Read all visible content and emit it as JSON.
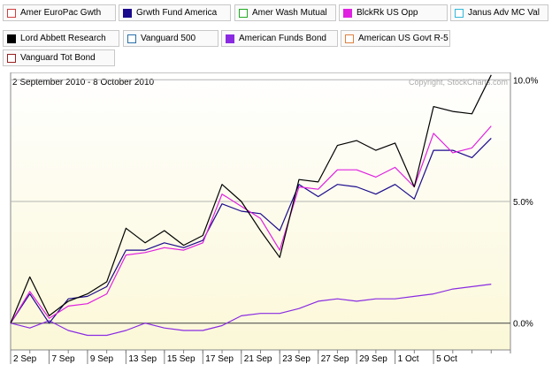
{
  "chart_data": {
    "type": "line",
    "date_range": "2 September 2010 - 8 October 2010",
    "copyright": "Copyright, StockCharts.com",
    "x_tick_labels": [
      "2 Sep",
      "7 Sep",
      "9 Sep",
      "13 Sep",
      "15 Sep",
      "17 Sep",
      "21 Sep",
      "23 Sep",
      "27 Sep",
      "29 Sep",
      "1 Oct",
      "5 Oct"
    ],
    "x_tick_index": [
      0,
      2,
      4,
      6,
      8,
      10,
      12,
      14,
      16,
      18,
      20,
      22
    ],
    "y_ticks": [
      0,
      5,
      10
    ],
    "y_tick_labels": [
      "0.0%",
      "5.0%",
      "10.0%"
    ],
    "ylim": [
      -1.1,
      10.3
    ],
    "y_unit": "%",
    "grid": true,
    "legend_position": "top",
    "legend": [
      {
        "name": "Amer EuroPac Gwth",
        "color": "#d04040",
        "filled": false
      },
      {
        "name": "Grwth Fund America",
        "color": "#1a0a8c",
        "filled": true
      },
      {
        "name": "Amer Wash Mutual",
        "color": "#22aa22",
        "filled": false
      },
      {
        "name": "BlckRk US Opp",
        "color": "#e020e0",
        "filled": true
      },
      {
        "name": "Janus Adv MC Val",
        "color": "#30b8d8",
        "filled": false
      },
      {
        "name": "Lord Abbett Research",
        "color": "#000000",
        "filled": true
      },
      {
        "name": "Vanguard 500",
        "color": "#2a70a8",
        "filled": false
      },
      {
        "name": "American Funds Bond",
        "color": "#8a2be2",
        "filled": true
      },
      {
        "name": "American US Govt R-5",
        "color": "#e08040",
        "filled": false
      },
      {
        "name": "Vanguard Tot Bond",
        "color": "#9a2020",
        "filled": false
      }
    ],
    "series": [
      {
        "name": "Lord Abbett Research",
        "color": "#000000",
        "values": [
          0.0,
          1.9,
          0.3,
          0.9,
          1.2,
          1.7,
          3.9,
          3.3,
          3.8,
          3.2,
          3.6,
          5.7,
          5.0,
          3.8,
          2.7,
          5.9,
          5.8,
          7.3,
          7.5,
          7.1,
          7.4,
          5.6,
          8.9,
          8.7,
          8.6,
          10.2
        ]
      },
      {
        "name": "BlckRk US Opp",
        "color": "#e020e0",
        "values": [
          0.0,
          1.3,
          0.2,
          0.7,
          0.8,
          1.2,
          2.8,
          2.9,
          3.1,
          3.0,
          3.3,
          5.3,
          4.8,
          4.3,
          3.0,
          5.6,
          5.5,
          6.3,
          6.3,
          6.0,
          6.4,
          5.6,
          7.8,
          7.0,
          7.2,
          8.1
        ]
      },
      {
        "name": "Grwth Fund America",
        "color": "#1a0a8c",
        "values": [
          0.0,
          1.2,
          0.0,
          1.0,
          1.1,
          1.5,
          3.0,
          3.0,
          3.3,
          3.1,
          3.4,
          4.9,
          4.6,
          4.5,
          3.8,
          5.7,
          5.2,
          5.7,
          5.6,
          5.3,
          5.7,
          5.1,
          7.1,
          7.1,
          6.8,
          7.6
        ]
      },
      {
        "name": "American Funds Bond",
        "color": "#8a2be2",
        "values": [
          0.0,
          -0.2,
          0.1,
          -0.3,
          -0.5,
          -0.5,
          -0.3,
          0.0,
          -0.2,
          -0.3,
          -0.3,
          -0.1,
          0.3,
          0.4,
          0.4,
          0.6,
          0.9,
          1.0,
          0.9,
          1.0,
          1.0,
          1.1,
          1.2,
          1.4,
          1.5,
          1.6
        ]
      }
    ]
  }
}
